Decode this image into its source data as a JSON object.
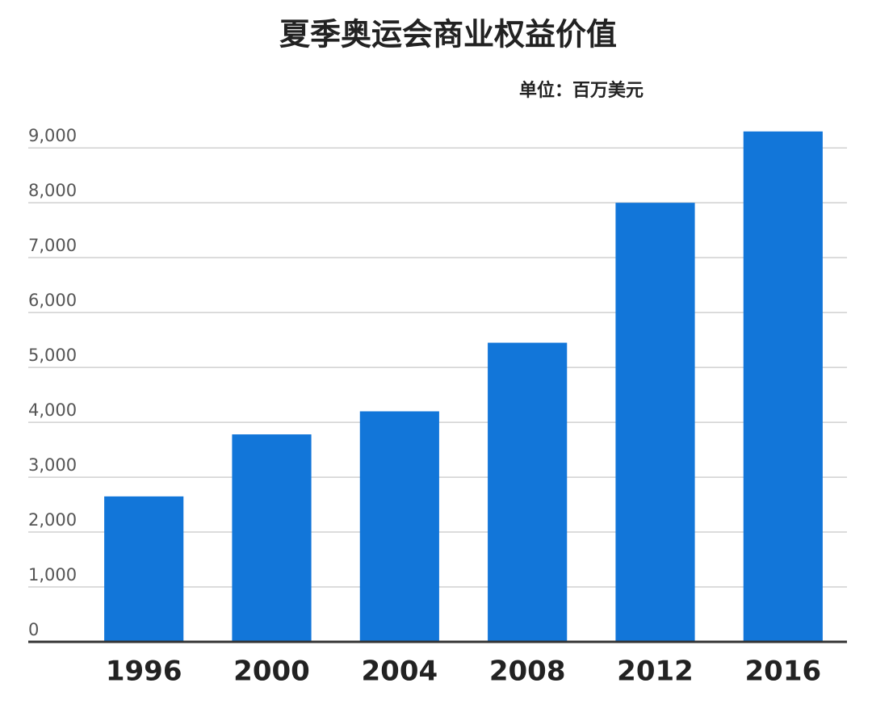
{
  "chart_data": {
    "type": "bar",
    "title": "夏季奥运会商业权益价值",
    "subtitle": "单位：百万美元",
    "categories": [
      "1996",
      "2000",
      "2004",
      "2008",
      "2012",
      "2016"
    ],
    "values": [
      2650,
      3780,
      4200,
      5450,
      8000,
      9300
    ],
    "color": "#1276d9",
    "ylim": [
      0,
      9400
    ],
    "yticks": [
      0,
      {
        "value": 1000,
        "label": "1,000"
      },
      {
        "value": 2000,
        "label": "2,000"
      },
      {
        "value": 3000,
        "label": "3,000"
      },
      {
        "value": 4000,
        "label": "4,000"
      },
      {
        "value": 5000,
        "label": "5,000"
      },
      {
        "value": 6000,
        "label": "6,000"
      },
      {
        "value": 7000,
        "label": "7,000"
      },
      {
        "value": 8000,
        "label": "8,000"
      },
      {
        "value": 9000,
        "label": "9,000"
      }
    ],
    "grid": true
  }
}
